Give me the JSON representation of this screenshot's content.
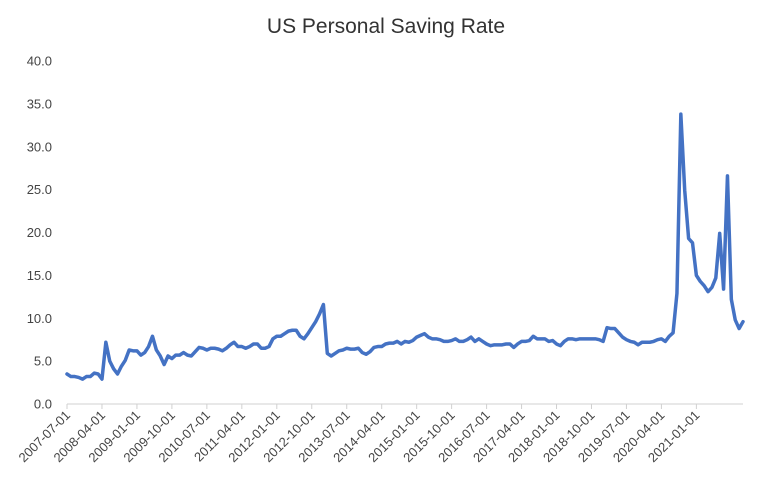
{
  "chart_data": {
    "type": "line",
    "title": "US Personal Saving Rate",
    "xlabel": "",
    "ylabel": "",
    "ylim": [
      0,
      40
    ],
    "yticks": [
      "0.0",
      "5.0",
      "10.0",
      "15.0",
      "20.0",
      "25.0",
      "30.0",
      "35.0",
      "40.0"
    ],
    "xticks": [
      "2007-07-01",
      "2008-04-01",
      "2009-01-01",
      "2009-10-01",
      "2010-07-01",
      "2011-04-01",
      "2012-01-01",
      "2012-10-01",
      "2013-07-01",
      "2014-04-01",
      "2015-01-01",
      "2015-10-01",
      "2016-07-01",
      "2017-04-01",
      "2018-01-01",
      "2018-10-01",
      "2019-07-01",
      "2020-04-01",
      "2021-01-01"
    ],
    "grid": false,
    "line_color": "#4472C4",
    "series": [
      {
        "values": [
          3.5,
          3.2,
          3.2,
          3.1,
          2.9,
          3.2,
          3.2,
          3.6,
          3.5,
          2.9,
          7.2,
          5.0,
          4.1,
          3.5,
          4.4,
          5.1,
          6.3,
          6.2,
          6.2,
          5.7,
          6.0,
          6.7,
          7.9,
          6.3,
          5.6,
          4.6,
          5.6,
          5.3,
          5.7,
          5.7,
          6.0,
          5.7,
          5.6,
          6.1,
          6.6,
          6.5,
          6.3,
          6.5,
          6.5,
          6.4,
          6.2,
          6.5,
          6.9,
          7.2,
          6.7,
          6.7,
          6.5,
          6.7,
          7.0,
          7.0,
          6.5,
          6.5,
          6.7,
          7.6,
          7.9,
          7.9,
          8.2,
          8.5,
          8.6,
          8.6,
          7.9,
          7.6,
          8.2,
          8.9,
          9.6,
          10.5,
          11.6,
          5.9,
          5.6,
          5.9,
          6.2,
          6.3,
          6.5,
          6.4,
          6.4,
          6.5,
          6.0,
          5.8,
          6.1,
          6.6,
          6.7,
          6.7,
          7.0,
          7.1,
          7.1,
          7.3,
          7.0,
          7.3,
          7.2,
          7.4,
          7.8,
          8.0,
          8.2,
          7.8,
          7.6,
          7.6,
          7.5,
          7.3,
          7.3,
          7.4,
          7.6,
          7.3,
          7.3,
          7.5,
          7.8,
          7.3,
          7.6,
          7.3,
          7.0,
          6.8,
          6.9,
          6.9,
          6.9,
          7.0,
          7.0,
          6.6,
          7.0,
          7.3,
          7.3,
          7.4,
          7.9,
          7.6,
          7.6,
          7.6,
          7.3,
          7.4,
          7.0,
          6.8,
          7.3,
          7.6,
          7.6,
          7.5,
          7.6,
          7.6,
          7.6,
          7.6,
          7.6,
          7.5,
          7.3,
          8.9,
          8.8,
          8.8,
          8.3,
          7.8,
          7.5,
          7.3,
          7.2,
          6.9,
          7.2,
          7.2,
          7.2,
          7.3,
          7.5,
          7.6,
          7.3,
          7.9,
          8.3,
          12.9,
          33.8,
          24.9,
          19.3,
          18.8,
          15.0,
          14.3,
          13.8,
          13.1,
          13.6,
          14.7,
          19.9,
          13.4,
          26.6,
          12.2,
          9.8,
          8.8,
          9.6
        ]
      }
    ]
  }
}
